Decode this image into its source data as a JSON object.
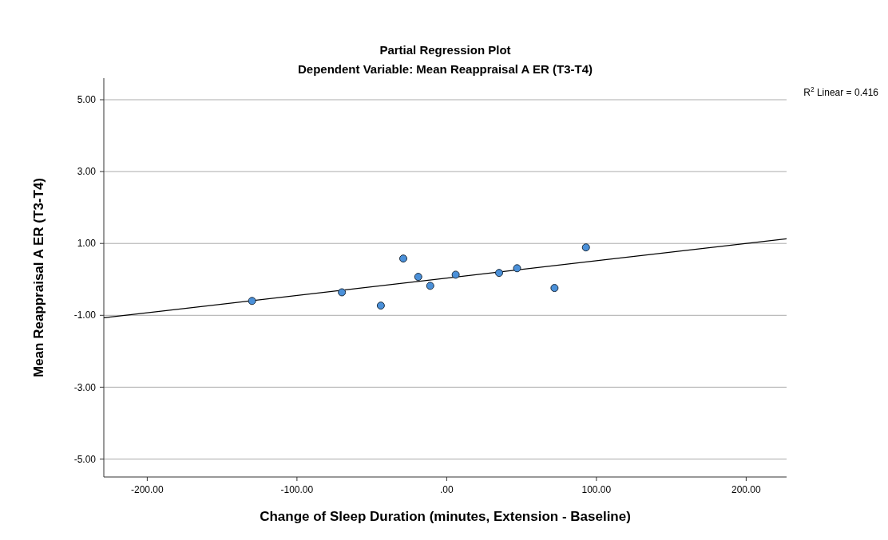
{
  "chart_data": {
    "type": "scatter",
    "title": "Partial Regression Plot",
    "subtitle": "Dependent Variable: Mean Reappraisal A ER (T3-T4)",
    "xlabel": "Change of Sleep Duration (minutes, Extension - Baseline)",
    "ylabel": "Mean Reappraisal A ER (T3-T4)",
    "xlim": [
      -229,
      227
    ],
    "ylim": [
      -5.5,
      5.6
    ],
    "xticks": [
      {
        "value": -200,
        "label": "-200.00"
      },
      {
        "value": -100,
        "label": "-100.00"
      },
      {
        "value": 0,
        "label": ".00"
      },
      {
        "value": 100,
        "label": "100.00"
      },
      {
        "value": 200,
        "label": "200.00"
      }
    ],
    "yticks": [
      {
        "value": -5,
        "label": "-5.00"
      },
      {
        "value": -3,
        "label": "-3.00"
      },
      {
        "value": -1,
        "label": "-1.00"
      },
      {
        "value": 1,
        "label": "1.00"
      },
      {
        "value": 3,
        "label": "3.00"
      },
      {
        "value": 5,
        "label": "5.00"
      }
    ],
    "grid": "y",
    "annotations": [
      "R$^{2}$ Linear = 0.416"
    ],
    "series": [
      {
        "marker": "circle",
        "color": "#4a90d9",
        "x": [
          -130,
          -70,
          -44,
          -29,
          -19,
          -11,
          6,
          35,
          47,
          72,
          93
        ],
        "values": [
          -0.6,
          -0.36,
          -0.73,
          0.58,
          0.07,
          -0.18,
          0.13,
          0.18,
          0.31,
          -0.24,
          0.89
        ]
      },
      {
        "type": "line",
        "color": "#000000",
        "line_style": "solid",
        "x": [
          -229,
          227
        ],
        "values": [
          -1.07,
          1.13
        ]
      }
    ]
  }
}
